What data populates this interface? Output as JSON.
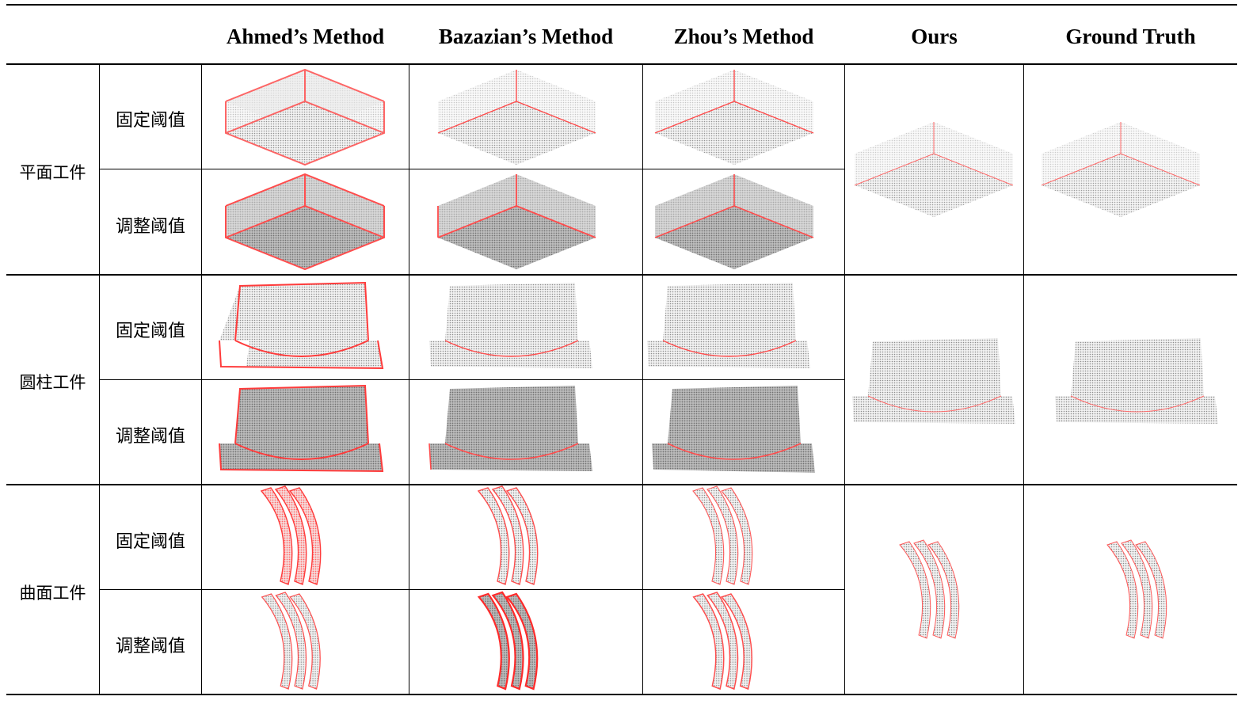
{
  "header": {
    "col1": "Ahmed’s Method",
    "col2": "Bazazian’s Method",
    "col3": "Zhou’s Method",
    "col4": "Ours",
    "col5": "Ground Truth"
  },
  "rows": [
    {
      "category": "平面工件",
      "fixed": "固定阈值",
      "adjusted": "调整阈值",
      "shape": "box"
    },
    {
      "category": "圆柱工件",
      "fixed": "固定阈值",
      "adjusted": "调整阈值",
      "shape": "cylinder"
    },
    {
      "category": "曲面工件",
      "fixed": "固定阈值",
      "adjusted": "调整阈值",
      "shape": "curved-blades"
    }
  ],
  "colors": {
    "edge_red": "#ff3b3b",
    "point_gray": "#9a9a9a",
    "light_gray": "#d4d4d4"
  }
}
